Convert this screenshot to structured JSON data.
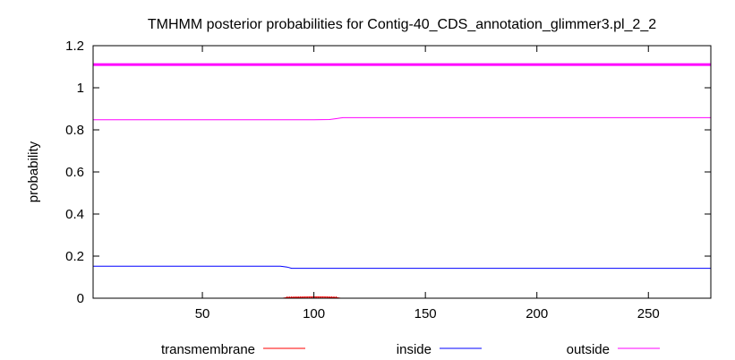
{
  "chart_data": {
    "type": "line",
    "title": "TMHMM posterior probabilities for Contig-40_CDS_annotation_glimmer3.pl_2_2",
    "xlabel": "",
    "ylabel": "probability",
    "xlim": [
      1,
      278
    ],
    "ylim": [
      0,
      1.2
    ],
    "x_ticks": [
      50,
      100,
      150,
      200,
      250
    ],
    "x_tick_labels": [
      "50",
      "100",
      "150",
      "200",
      "250"
    ],
    "y_ticks": [
      0,
      0.2,
      0.4,
      0.6,
      0.8,
      1,
      1.2
    ],
    "y_tick_labels": [
      "0",
      "0.2",
      "0.4",
      "0.6",
      "0.8",
      "1",
      "1.2"
    ],
    "grid": false,
    "legend_position": "bottom",
    "reference_line": {
      "y": 1.11,
      "color": "#ff00ff"
    },
    "series": [
      {
        "name": "transmembrane",
        "color": "#ff0000",
        "points": [
          [
            1,
            0
          ],
          [
            86,
            0
          ],
          [
            88,
            0.003
          ],
          [
            100,
            0.006
          ],
          [
            105,
            0.005
          ],
          [
            110,
            0.003
          ],
          [
            112,
            0
          ],
          [
            278,
            0
          ]
        ]
      },
      {
        "name": "inside",
        "color": "#0000ff",
        "points": [
          [
            1,
            0.152
          ],
          [
            85,
            0.152
          ],
          [
            88,
            0.148
          ],
          [
            90,
            0.142
          ],
          [
            100,
            0.142
          ],
          [
            120,
            0.142
          ],
          [
            278,
            0.142
          ]
        ]
      },
      {
        "name": "outside",
        "color": "#ff00ff",
        "points": [
          [
            1,
            0.848
          ],
          [
            100,
            0.848
          ],
          [
            107,
            0.849
          ],
          [
            110,
            0.853
          ],
          [
            113,
            0.858
          ],
          [
            120,
            0.858
          ],
          [
            278,
            0.858
          ]
        ]
      }
    ]
  }
}
